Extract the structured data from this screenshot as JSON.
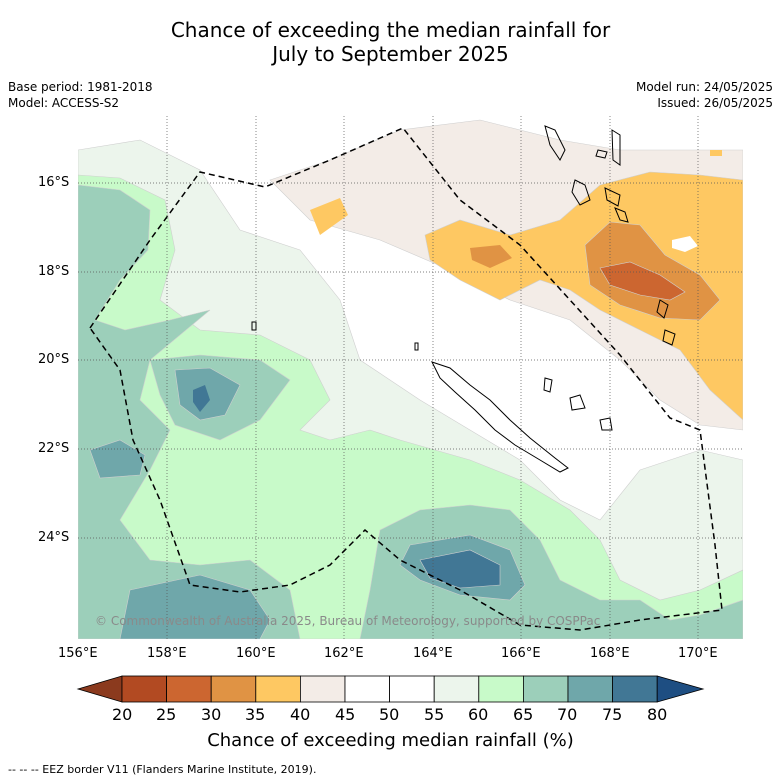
{
  "title_line1": "Chance of exceeding the median rainfall for",
  "title_line2": "July to September 2025",
  "base_period": "Base period: 1981-2018",
  "model": "Model: ACCESS-S2",
  "model_run": "Model run: 24/05/2025",
  "issued": "Issued: 26/05/2025",
  "lat_labels": [
    "16°S",
    "18°S",
    "20°S",
    "22°S",
    "24°S"
  ],
  "lon_labels": [
    "156°E",
    "158°E",
    "160°E",
    "162°E",
    "164°E",
    "166°E",
    "168°E",
    "170°E"
  ],
  "colorbar": {
    "ticks": [
      "20",
      "25",
      "30",
      "35",
      "40",
      "45",
      "50",
      "55",
      "60",
      "65",
      "70",
      "75",
      "80"
    ],
    "title": "Chance of exceeding median rainfall (%)",
    "colors": [
      "#8b3a1e",
      "#b24a22",
      "#cc6630",
      "#e09344",
      "#fec862",
      "#f3ece7",
      "#ffffff",
      "#ffffff",
      "#ecf5ec",
      "#c8fac9",
      "#9ccfba",
      "#6fa7aa",
      "#417795",
      "#1e4e82"
    ]
  },
  "copyright": "© Commonwealth of Australia 2025, Bureau of Meteorology, supported by COSPPac",
  "eez_legend": "-- -- -- EEZ border V11 (Flanders Marine Institute, 2019)."
}
